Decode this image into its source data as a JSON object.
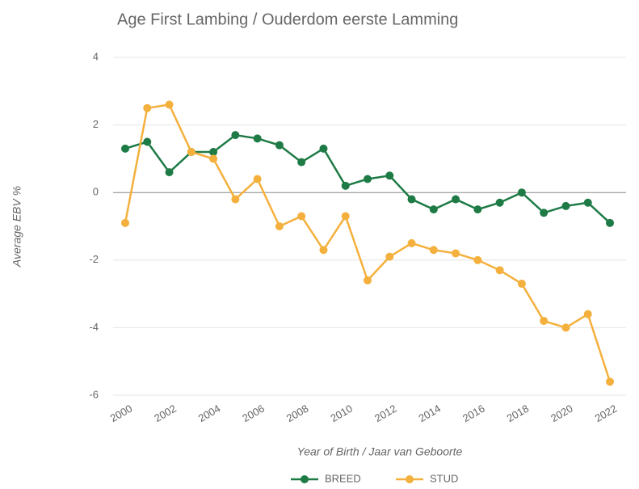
{
  "chart_data": {
    "type": "line",
    "title": "Age First Lambing / Ouderdom eerste Lamming",
    "x_label": "Year of Birth / Jaar van Geboorte",
    "y_label": "Average EBV %",
    "x": [
      2000,
      2001,
      2002,
      2003,
      2004,
      2005,
      2006,
      2007,
      2008,
      2009,
      2010,
      2011,
      2012,
      2013,
      2014,
      2015,
      2016,
      2017,
      2018,
      2019,
      2020,
      2021,
      2022
    ],
    "series": [
      {
        "name": "BREED",
        "color": "#1e7b45",
        "values": [
          1.3,
          1.5,
          0.6,
          1.2,
          1.2,
          1.7,
          1.6,
          1.4,
          0.9,
          1.3,
          0.2,
          0.4,
          0.5,
          -0.2,
          -0.5,
          -0.2,
          -0.5,
          -0.3,
          0.0,
          -0.6,
          -0.4,
          -0.3,
          -0.9
        ]
      },
      {
        "name": "STUD",
        "color": "#f4b03c",
        "values": [
          -0.9,
          2.5,
          2.6,
          1.2,
          1.0,
          -0.2,
          0.4,
          -1.0,
          -0.7,
          -1.7,
          -0.7,
          -2.6,
          -1.9,
          -1.5,
          -1.7,
          -1.8,
          -2.0,
          -2.3,
          -2.7,
          -3.8,
          -4.0,
          -3.6,
          -5.6
        ]
      }
    ],
    "xlim": [
      2000,
      2022
    ],
    "xticks": [
      2000,
      2002,
      2004,
      2006,
      2008,
      2010,
      2012,
      2014,
      2016,
      2018,
      2020,
      2022
    ],
    "ylim": [
      -6,
      4
    ],
    "yticks": [
      -6,
      -4,
      -2,
      0,
      2,
      4
    ],
    "grid": true,
    "legend": "bottom"
  }
}
